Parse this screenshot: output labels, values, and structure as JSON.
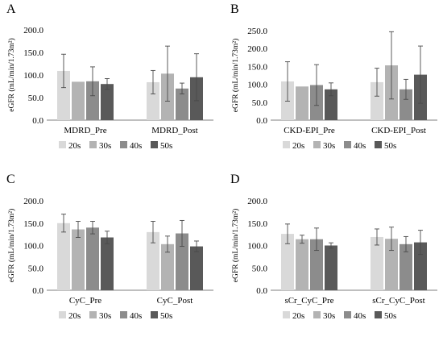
{
  "colors": {
    "20s": "#d9d9d9",
    "30s": "#b3b3b3",
    "40s": "#8c8c8c",
    "50s": "#595959",
    "axis": "#7f7f7f",
    "error": "#4a4a4a"
  },
  "chart_data": [
    {
      "type": "bar",
      "panel_label": "A",
      "ylabel": "eGFR (mL/min/1.73m²)",
      "ylim": [
        0,
        200
      ],
      "yticks": [
        "0.0",
        "50.0",
        "100.0",
        "150.0",
        "200.0"
      ],
      "categories": [
        "MDRD_Pre",
        "MDRD_Post"
      ],
      "legend_position": "bottom",
      "series": [
        {
          "name": "20s",
          "values": [
            109,
            84
          ],
          "errors": [
            37,
            26
          ]
        },
        {
          "name": "30s",
          "values": [
            85,
            103
          ],
          "errors": [
            0,
            61
          ]
        },
        {
          "name": "40s",
          "values": [
            86,
            70
          ],
          "errors": [
            32,
            12
          ]
        },
        {
          "name": "50s",
          "values": [
            80,
            95
          ],
          "errors": [
            12,
            52
          ]
        }
      ]
    },
    {
      "type": "bar",
      "panel_label": "B",
      "ylabel": "eGFR (mL/min/1.73m²)",
      "ylim": [
        0,
        250
      ],
      "yticks": [
        "0.0",
        "50.0",
        "100.0",
        "150.0",
        "200.0",
        "250.0"
      ],
      "categories": [
        "CKD-EPI_Pre",
        "CKD-EPI_Post"
      ],
      "legend_position": "bottom",
      "series": [
        {
          "name": "20s",
          "values": [
            108,
            106
          ],
          "errors": [
            55,
            39
          ]
        },
        {
          "name": "30s",
          "values": [
            94,
            153
          ],
          "errors": [
            0,
            94
          ]
        },
        {
          "name": "40s",
          "values": [
            98,
            86
          ],
          "errors": [
            57,
            28
          ]
        },
        {
          "name": "50s",
          "values": [
            86,
            127
          ],
          "errors": [
            18,
            80
          ]
        }
      ]
    },
    {
      "type": "bar",
      "panel_label": "C",
      "ylabel": "eGFR (mL/min/1.73m²)",
      "ylim": [
        0,
        200
      ],
      "yticks": [
        "0.0",
        "50.0",
        "100.0",
        "150.0",
        "200.0"
      ],
      "categories": [
        "CyC_Pre",
        "CyC_Post"
      ],
      "legend_position": "bottom",
      "series": [
        {
          "name": "20s",
          "values": [
            150,
            130
          ],
          "errors": [
            20,
            24
          ]
        },
        {
          "name": "30s",
          "values": [
            136,
            103
          ],
          "errors": [
            18,
            18
          ]
        },
        {
          "name": "40s",
          "values": [
            140,
            127
          ],
          "errors": [
            14,
            29
          ]
        },
        {
          "name": "50s",
          "values": [
            118,
            98
          ],
          "errors": [
            14,
            12
          ]
        }
      ]
    },
    {
      "type": "bar",
      "panel_label": "D",
      "ylabel": "eGFR (mL/min/1.73m²)",
      "ylim": [
        0,
        200
      ],
      "yticks": [
        "0.0",
        "50.0",
        "100.0",
        "150.0",
        "200.0"
      ],
      "categories": [
        "sCr_CyC_Pre",
        "sCr_CyC_Post"
      ],
      "legend_position": "bottom",
      "series": [
        {
          "name": "20s",
          "values": [
            126,
            119
          ],
          "errors": [
            22,
            18
          ]
        },
        {
          "name": "30s",
          "values": [
            114,
            115
          ],
          "errors": [
            9,
            26
          ]
        },
        {
          "name": "40s",
          "values": [
            114,
            103
          ],
          "errors": [
            25,
            17
          ]
        },
        {
          "name": "50s",
          "values": [
            100,
            107
          ],
          "errors": [
            6,
            27
          ]
        }
      ]
    }
  ]
}
